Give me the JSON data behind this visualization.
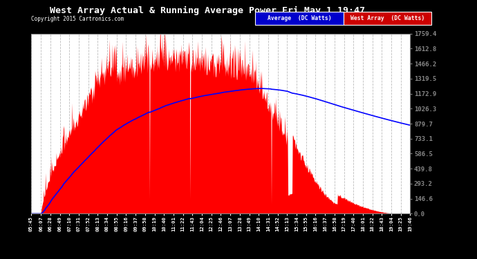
{
  "title": "West Array Actual & Running Average Power Fri May 1 19:47",
  "copyright": "Copyright 2015 Cartronics.com",
  "yticks": [
    0.0,
    146.6,
    293.2,
    439.8,
    586.5,
    733.1,
    879.7,
    1026.3,
    1172.9,
    1319.5,
    1466.2,
    1612.8,
    1759.4
  ],
  "ymax": 1759.4,
  "outer_bg_color": "#000000",
  "plot_bg_color": "#ffffff",
  "fill_color": "#ff0000",
  "avg_line_color": "#0000ff",
  "title_color": "#ffffff",
  "copyright_color": "#ffffff",
  "grid_color": "#aaaaaa",
  "xticks": [
    "05:45",
    "06:07",
    "06:28",
    "06:49",
    "07:10",
    "07:31",
    "07:52",
    "08:13",
    "08:34",
    "08:55",
    "09:16",
    "09:37",
    "09:58",
    "10:19",
    "10:40",
    "11:01",
    "11:22",
    "11:43",
    "12:04",
    "12:25",
    "12:46",
    "13:07",
    "13:28",
    "13:49",
    "14:10",
    "14:31",
    "14:52",
    "15:13",
    "15:34",
    "15:55",
    "16:16",
    "16:37",
    "16:58",
    "17:19",
    "17:40",
    "18:01",
    "18:22",
    "18:43",
    "19:04",
    "19:25",
    "19:46"
  ],
  "legend_avg_label": "Average  (DC Watts)",
  "legend_west_label": "West Array  (DC Watts)",
  "legend_avg_bg": "#0000cc",
  "legend_west_bg": "#cc0000"
}
